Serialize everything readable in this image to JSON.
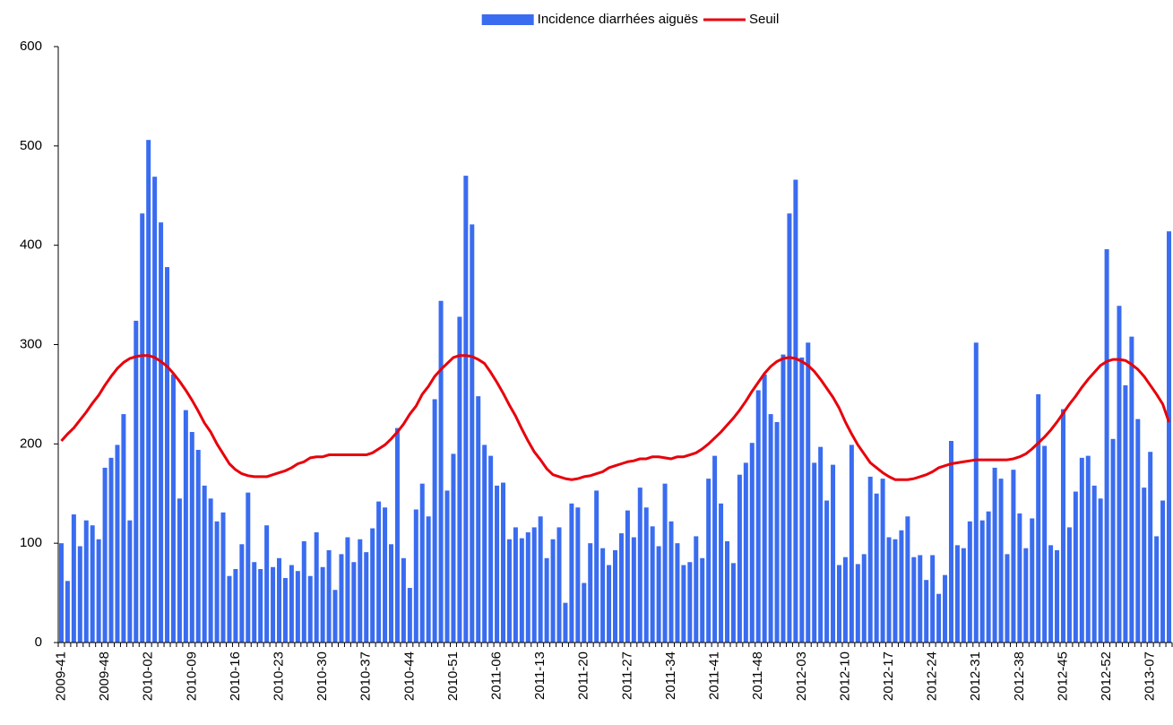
{
  "chart_data": {
    "type": "bar",
    "categories": [
      "2009-41",
      null,
      null,
      null,
      null,
      null,
      null,
      "2009-48",
      null,
      null,
      null,
      null,
      null,
      null,
      "2010-02",
      null,
      null,
      null,
      null,
      null,
      null,
      "2010-09",
      null,
      null,
      null,
      null,
      null,
      null,
      "2010-16",
      null,
      null,
      null,
      null,
      null,
      null,
      "2010-23",
      null,
      null,
      null,
      null,
      null,
      null,
      "2010-30",
      null,
      null,
      null,
      null,
      null,
      null,
      "2010-37",
      null,
      null,
      null,
      null,
      null,
      null,
      "2010-44",
      null,
      null,
      null,
      null,
      null,
      null,
      "2010-51",
      null,
      null,
      null,
      null,
      null,
      null,
      "2011-06",
      null,
      null,
      null,
      null,
      null,
      null,
      "2011-13",
      null,
      null,
      null,
      null,
      null,
      null,
      "2011-20",
      null,
      null,
      null,
      null,
      null,
      null,
      "2011-27",
      null,
      null,
      null,
      null,
      null,
      null,
      "2011-34",
      null,
      null,
      null,
      null,
      null,
      null,
      "2011-41",
      null,
      null,
      null,
      null,
      null,
      null,
      "2011-48",
      null,
      null,
      null,
      null,
      null,
      null,
      "2012-03",
      null,
      null,
      null,
      null,
      null,
      null,
      "2012-10",
      null,
      null,
      null,
      null,
      null,
      null,
      "2012-17",
      null,
      null,
      null,
      null,
      null,
      null,
      "2012-24",
      null,
      null,
      null,
      null,
      null,
      null,
      "2012-31",
      null,
      null,
      null,
      null,
      null,
      null,
      "2012-38",
      null,
      null,
      null,
      null,
      null,
      null,
      "2012-45",
      null,
      null,
      null,
      null,
      null,
      null,
      "2012-52",
      null,
      null,
      null,
      null,
      null,
      null,
      "2013-07",
      null,
      null,
      null
    ],
    "series": [
      {
        "name": "Incidence diarrhées aiguës",
        "type": "bar",
        "color": "#3a6cf0",
        "values": [
          100,
          62,
          129,
          97,
          123,
          118,
          104,
          176,
          186,
          199,
          230,
          123,
          324,
          432,
          506,
          469,
          423,
          378,
          270,
          145,
          234,
          212,
          194,
          158,
          145,
          122,
          131,
          67,
          74,
          99,
          151,
          81,
          74,
          118,
          76,
          85,
          65,
          78,
          72,
          102,
          67,
          111,
          76,
          93,
          53,
          89,
          106,
          81,
          104,
          91,
          115,
          142,
          136,
          99,
          216,
          85,
          55,
          134,
          160,
          127,
          245,
          344,
          153,
          190,
          328,
          470,
          421,
          248,
          199,
          188,
          158,
          161,
          104,
          116,
          105,
          111,
          116,
          127,
          85,
          104,
          116,
          40,
          140,
          136,
          60,
          100,
          153,
          95,
          78,
          93,
          110,
          133,
          106,
          156,
          136,
          117,
          97,
          160,
          122,
          100,
          78,
          81,
          107,
          85,
          165,
          188,
          140,
          102,
          80,
          169,
          181,
          201,
          254,
          270,
          230,
          222,
          290,
          432,
          466,
          287,
          302,
          181,
          197,
          143,
          179,
          78,
          86,
          199,
          79,
          89,
          167,
          150,
          165,
          106,
          104,
          113,
          127,
          86,
          88,
          63,
          88,
          49,
          68,
          203,
          98,
          95,
          122,
          302,
          123,
          132,
          176,
          165,
          89,
          174,
          130,
          95,
          125,
          250,
          198,
          98,
          93,
          235,
          116,
          152,
          186,
          188,
          158,
          145,
          396,
          205,
          339,
          259,
          308,
          225,
          156,
          192,
          107,
          143,
          414
        ]
      },
      {
        "name": "Seuil",
        "type": "line",
        "color": "#e8000b",
        "values": [
          203,
          210,
          216,
          224,
          232,
          241,
          249,
          259,
          268,
          276,
          282,
          286,
          288,
          289,
          289,
          287,
          283,
          278,
          271,
          263,
          254,
          244,
          233,
          221,
          212,
          200,
          190,
          180,
          174,
          170,
          168,
          167,
          167,
          167,
          169,
          171,
          173,
          176,
          180,
          182,
          186,
          187,
          187,
          189,
          189,
          189,
          189,
          189,
          189,
          189,
          191,
          195,
          199,
          205,
          212,
          220,
          230,
          238,
          250,
          258,
          268,
          275,
          281,
          287,
          289,
          289,
          288,
          285,
          281,
          272,
          262,
          251,
          239,
          228,
          215,
          203,
          192,
          184,
          175,
          169,
          167,
          165,
          164,
          165,
          167,
          168,
          170,
          172,
          176,
          178,
          180,
          182,
          183,
          185,
          185,
          187,
          187,
          186,
          185,
          187,
          187,
          189,
          191,
          195,
          200,
          206,
          212,
          219,
          226,
          234,
          243,
          253,
          262,
          271,
          278,
          283,
          286,
          287,
          286,
          283,
          279,
          273,
          265,
          256,
          247,
          236,
          222,
          210,
          199,
          190,
          181,
          176,
          171,
          167,
          164,
          164,
          164,
          165,
          167,
          169,
          172,
          176,
          178,
          180,
          181,
          182,
          183,
          184,
          184,
          184,
          184,
          184,
          184,
          185,
          187,
          190,
          195,
          201,
          207,
          214,
          222,
          231,
          240,
          248,
          257,
          265,
          272,
          279,
          283,
          285,
          285,
          284,
          280,
          275,
          268,
          259,
          250,
          240,
          222
        ]
      }
    ],
    "ylim": [
      0,
      600
    ],
    "yticks": [
      0,
      100,
      200,
      300,
      400,
      500,
      600
    ],
    "grid": false
  }
}
